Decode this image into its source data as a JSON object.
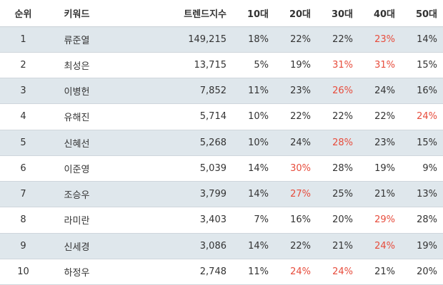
{
  "table": {
    "headers": [
      "순위",
      "키워드",
      "트렌드지수",
      "10대",
      "20대",
      "30대",
      "40대",
      "50대"
    ],
    "rows": [
      {
        "rank": "1",
        "keyword": "류준열",
        "trend": "149,215",
        "a10": "18%",
        "a20": "22%",
        "a30": "22%",
        "a40": "23%",
        "a50": "14%"
      },
      {
        "rank": "2",
        "keyword": "최성은",
        "trend": "13,715",
        "a10": "5%",
        "a20": "19%",
        "a30": "31%",
        "a40": "31%",
        "a50": "15%"
      },
      {
        "rank": "3",
        "keyword": "이병헌",
        "trend": "7,852",
        "a10": "11%",
        "a20": "23%",
        "a30": "26%",
        "a40": "24%",
        "a50": "16%"
      },
      {
        "rank": "4",
        "keyword": "유해진",
        "trend": "5,714",
        "a10": "10%",
        "a20": "22%",
        "a30": "22%",
        "a40": "22%",
        "a50": "24%"
      },
      {
        "rank": "5",
        "keyword": "신혜선",
        "trend": "5,268",
        "a10": "10%",
        "a20": "24%",
        "a30": "28%",
        "a40": "23%",
        "a50": "15%"
      },
      {
        "rank": "6",
        "keyword": "이준영",
        "trend": "5,039",
        "a10": "14%",
        "a20": "30%",
        "a30": "28%",
        "a40": "19%",
        "a50": "9%"
      },
      {
        "rank": "7",
        "keyword": "조승우",
        "trend": "3,799",
        "a10": "14%",
        "a20": "27%",
        "a30": "25%",
        "a40": "21%",
        "a50": "13%"
      },
      {
        "rank": "8",
        "keyword": "라미란",
        "trend": "3,403",
        "a10": "7%",
        "a20": "16%",
        "a30": "20%",
        "a40": "29%",
        "a50": "28%"
      },
      {
        "rank": "9",
        "keyword": "신세경",
        "trend": "3,086",
        "a10": "14%",
        "a20": "22%",
        "a30": "21%",
        "a40": "24%",
        "a50": "19%"
      },
      {
        "rank": "10",
        "keyword": "하정우",
        "trend": "2,748",
        "a10": "11%",
        "a20": "24%",
        "a30": "24%",
        "a40": "21%",
        "a50": "20%"
      }
    ]
  },
  "colors": {
    "highlight_text": "#e74c3c",
    "odd_row_bg": "#dfe7ec",
    "even_row_bg": "#ffffff"
  }
}
